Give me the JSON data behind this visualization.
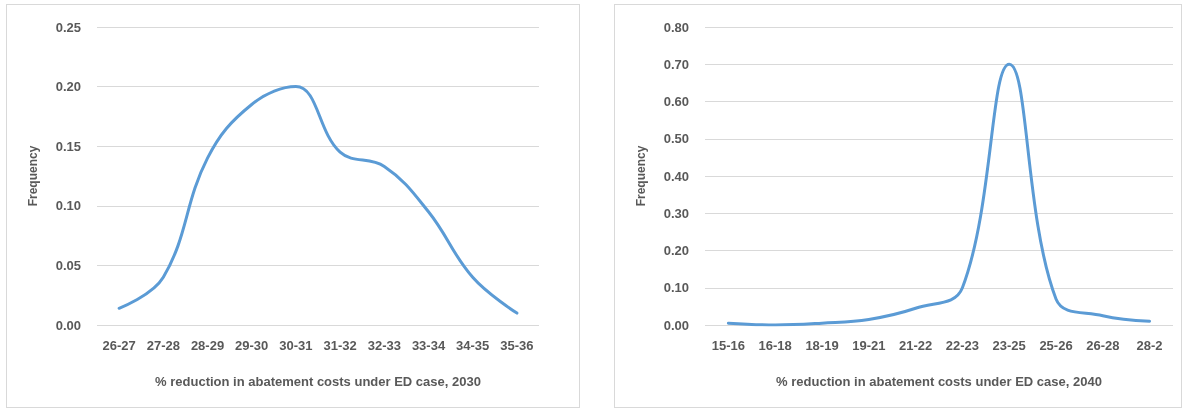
{
  "chart_data": [
    {
      "type": "line",
      "xlabel": "% reduction in abatement costs under ED case, 2030",
      "ylabel": "Frequency",
      "categories": [
        "26-27",
        "27-28",
        "28-29",
        "29-30",
        "30-31",
        "31-32",
        "32-33",
        "33-34",
        "34-35",
        "35-36"
      ],
      "series": [
        {
          "color": "#5b9bd5",
          "values": [
            0.014,
            0.04,
            0.14,
            0.185,
            0.2,
            0.145,
            0.133,
            0.095,
            0.04,
            0.01
          ]
        }
      ],
      "ylim": [
        0,
        0.25
      ],
      "yticks": [
        {
          "value": 0,
          "label": "0.00"
        },
        {
          "value": 0.05,
          "label": "0.05"
        },
        {
          "value": 0.1,
          "label": "0.10"
        },
        {
          "value": 0.15,
          "label": "0.15"
        },
        {
          "value": 0.2,
          "label": "0.20"
        },
        {
          "value": 0.25,
          "label": "0.25"
        }
      ],
      "grid": "y",
      "marker": "none",
      "line_style": "solid"
    },
    {
      "type": "line",
      "xlabel": "% reduction in abatement costs under ED case, 2040",
      "ylabel": "Frequency",
      "categories": [
        "15-16",
        "16-18",
        "18-19",
        "19-21",
        "21-22",
        "22-23",
        "23-25",
        "25-26",
        "26-28",
        "28-2"
      ],
      "series": [
        {
          "color": "#5b9bd5",
          "values": [
            0.005,
            0,
            0.005,
            0.015,
            0.045,
            0.1,
            0.7,
            0.07,
            0.025,
            0.01
          ]
        }
      ],
      "ylim": [
        0,
        0.8
      ],
      "yticks": [
        {
          "value": 0,
          "label": "0.00"
        },
        {
          "value": 0.1,
          "label": "0.10"
        },
        {
          "value": 0.2,
          "label": "0.20"
        },
        {
          "value": 0.3,
          "label": "0.30"
        },
        {
          "value": 0.4,
          "label": "0.40"
        },
        {
          "value": 0.5,
          "label": "0.50"
        },
        {
          "value": 0.6,
          "label": "0.60"
        },
        {
          "value": 0.7,
          "label": "0.70"
        },
        {
          "value": 0.8,
          "label": "0.80"
        }
      ],
      "grid": "y",
      "marker": "none",
      "line_style": "solid"
    }
  ]
}
